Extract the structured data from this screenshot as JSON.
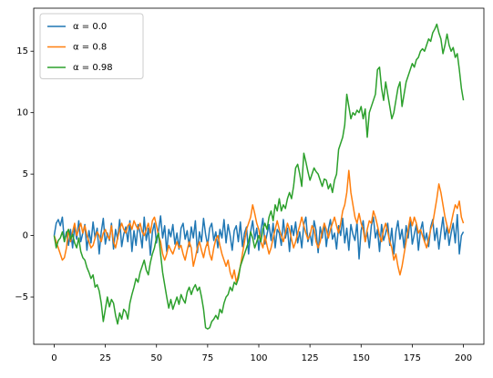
{
  "chart_data": {
    "type": "line",
    "x": [
      0,
      1,
      2,
      3,
      4,
      5,
      6,
      7,
      8,
      9,
      10,
      11,
      12,
      13,
      14,
      15,
      16,
      17,
      18,
      19,
      20,
      21,
      22,
      23,
      24,
      25,
      26,
      27,
      28,
      29,
      30,
      31,
      32,
      33,
      34,
      35,
      36,
      37,
      38,
      39,
      40,
      41,
      42,
      43,
      44,
      45,
      46,
      47,
      48,
      49,
      50,
      51,
      52,
      53,
      54,
      55,
      56,
      57,
      58,
      59,
      60,
      61,
      62,
      63,
      64,
      65,
      66,
      67,
      68,
      69,
      70,
      71,
      72,
      73,
      74,
      75,
      76,
      77,
      78,
      79,
      80,
      81,
      82,
      83,
      84,
      85,
      86,
      87,
      88,
      89,
      90,
      91,
      92,
      93,
      94,
      95,
      96,
      97,
      98,
      99,
      100,
      101,
      102,
      103,
      104,
      105,
      106,
      107,
      108,
      109,
      110,
      111,
      112,
      113,
      114,
      115,
      116,
      117,
      118,
      119,
      120,
      121,
      122,
      123,
      124,
      125,
      126,
      127,
      128,
      129,
      130,
      131,
      132,
      133,
      134,
      135,
      136,
      137,
      138,
      139,
      140,
      141,
      142,
      143,
      144,
      145,
      146,
      147,
      148,
      149,
      150,
      151,
      152,
      153,
      154,
      155,
      156,
      157,
      158,
      159,
      160,
      161,
      162,
      163,
      164,
      165,
      166,
      167,
      168,
      169,
      170,
      171,
      172,
      173,
      174,
      175,
      176,
      177,
      178,
      179,
      180,
      181,
      182,
      183,
      184,
      185,
      186,
      187,
      188,
      189,
      190,
      191,
      192,
      193,
      194,
      195,
      196,
      197,
      198,
      199,
      200
    ],
    "series": [
      {
        "name": "α = 0.0",
        "color": "#1f77b4",
        "values": [
          0.0,
          1.0,
          1.3,
          0.8,
          1.5,
          -0.5,
          0.3,
          -0.8,
          0.5,
          -1.0,
          0.8,
          -0.3,
          1.2,
          -0.5,
          0.2,
          0.9,
          -1.2,
          0.4,
          -0.6,
          1.1,
          -0.2,
          0.6,
          -1.5,
          0.3,
          1.4,
          -0.7,
          0.2,
          -0.4,
          1.0,
          -1.1,
          0.5,
          -0.3,
          1.3,
          -0.9,
          0.1,
          0.7,
          -0.5,
          1.2,
          -1.3,
          0.4,
          -0.8,
          0.9,
          0.2,
          -1.0,
          1.5,
          -0.4,
          0.6,
          -1.6,
          0.3,
          1.0,
          -0.6,
          0.4,
          1.6,
          -0.2,
          0.8,
          -1.3,
          0.5,
          -0.1,
          0.9,
          -0.7,
          0.2,
          -1.1,
          0.6,
          1.0,
          -0.3,
          0.4,
          -0.9,
          0.7,
          -0.2,
          1.2,
          -1.4,
          0.3,
          -0.5,
          1.4,
          0.1,
          -0.8,
          0.6,
          1.0,
          -0.4,
          0.3,
          -1.0,
          0.5,
          -0.2,
          1.3,
          -0.6,
          0.9,
          0.0,
          -1.2,
          0.4,
          0.8,
          -0.5,
          1.1,
          -0.9,
          0.2,
          0.7,
          -1.5,
          0.3,
          1.2,
          -0.3,
          0.6,
          -1.2,
          0.4,
          1.4,
          -0.7,
          0.1,
          0.9,
          -0.4,
          1.0,
          -1.0,
          0.5,
          0.2,
          -0.8,
          1.3,
          -0.2,
          0.6,
          -1.3,
          0.8,
          0.0,
          1.1,
          -0.6,
          0.3,
          -1.0,
          0.9,
          1.5,
          -0.5,
          0.2,
          -0.8,
          1.2,
          0.4,
          -1.4,
          0.7,
          -0.2,
          1.0,
          -0.9,
          0.5,
          1.3,
          -0.3,
          0.2,
          -1.1,
          0.8,
          0.0,
          1.4,
          -0.6,
          0.6,
          -1.2,
          0.9,
          0.1,
          -0.4,
          1.1,
          -1.9,
          0.4,
          1.2,
          -0.5,
          0.3,
          -1.0,
          0.8,
          1.5,
          -0.2,
          0.5,
          -1.3,
          0.9,
          -0.4,
          0.2,
          1.0,
          -0.8,
          0.6,
          -1.5,
          0.3,
          1.2,
          -0.3,
          0.5,
          -1.0,
          0.8,
          -0.2,
          1.4,
          -0.7,
          0.1,
          0.9,
          -1.2,
          0.4,
          1.1,
          -0.5,
          0.2,
          -0.9,
          0.7,
          1.3,
          -0.4,
          0.6,
          -1.1,
          0.3,
          1.5,
          -0.3,
          0.8,
          -0.8,
          0.2,
          1.0,
          -0.6,
          1.7,
          -1.5,
          0.0,
          0.3
        ]
      },
      {
        "name": "α = 0.8",
        "color": "#ff7f0e",
        "values": [
          0.0,
          -0.5,
          -1.0,
          -1.5,
          -2.0,
          -1.8,
          -1.0,
          0.5,
          -0.5,
          0.3,
          1.0,
          0.0,
          0.5,
          1.0,
          0.2,
          0.8,
          0.0,
          -0.5,
          -1.0,
          -0.8,
          -0.2,
          0.3,
          0.0,
          -0.5,
          0.2,
          0.5,
          0.0,
          -0.3,
          0.8,
          -0.5,
          -1.0,
          -0.2,
          0.5,
          1.0,
          0.5,
          0.2,
          0.8,
          1.0,
          0.5,
          1.2,
          0.8,
          0.5,
          1.0,
          0.3,
          0.0,
          0.5,
          1.0,
          0.2,
          1.2,
          1.5,
          0.8,
          0.0,
          -0.5,
          -1.5,
          -2.0,
          -1.5,
          -0.8,
          -1.2,
          -1.5,
          -1.0,
          -0.5,
          -1.0,
          -0.8,
          -1.5,
          -2.0,
          -1.2,
          -0.5,
          -1.0,
          -2.5,
          -1.8,
          -1.0,
          -0.5,
          -1.2,
          -1.8,
          -1.0,
          -0.5,
          -1.5,
          -2.0,
          -1.0,
          -0.3,
          0.0,
          -0.8,
          -1.5,
          -2.0,
          -2.5,
          -2.0,
          -3.0,
          -3.5,
          -2.8,
          -3.8,
          -3.2,
          -2.5,
          -1.5,
          -0.5,
          0.5,
          1.0,
          1.5,
          2.5,
          1.8,
          1.0,
          0.5,
          -0.5,
          -1.0,
          0.0,
          -0.8,
          -1.5,
          -1.0,
          -0.2,
          0.5,
          1.2,
          0.5,
          0.0,
          -0.5,
          0.2,
          1.0,
          0.5,
          -0.3,
          -1.0,
          -0.5,
          0.2,
          0.8,
          1.5,
          0.8,
          0.2,
          -0.3,
          0.0,
          0.8,
          0.5,
          -0.5,
          -1.0,
          -0.5,
          0.3,
          1.0,
          0.5,
          -0.2,
          0.5,
          1.0,
          1.5,
          0.8,
          0.2,
          1.0,
          2.0,
          2.5,
          3.5,
          5.3,
          3.5,
          2.5,
          1.5,
          1.0,
          1.8,
          1.0,
          0.5,
          -0.5,
          0.5,
          1.2,
          1.0,
          2.0,
          1.5,
          0.8,
          0.0,
          -0.5,
          0.5,
          1.0,
          0.3,
          -0.5,
          -1.0,
          -2.0,
          -1.5,
          -2.5,
          -3.2,
          -2.5,
          -1.5,
          -0.5,
          0.5,
          1.5,
          0.8,
          1.5,
          1.0,
          0.2,
          0.5,
          0.0,
          -0.5,
          -1.0,
          -0.3,
          0.5,
          1.0,
          2.0,
          3.0,
          4.2,
          3.5,
          2.5,
          1.5,
          0.8,
          0.2,
          1.0,
          1.8,
          2.5,
          2.2,
          2.8,
          1.5,
          1.0
        ]
      },
      {
        "name": "α = 0.98",
        "color": "#2ca02c",
        "values": [
          0.0,
          -1.0,
          -0.4,
          -0.2,
          0.3,
          -0.5,
          0.2,
          0.5,
          -0.3,
          0.1,
          -0.6,
          -1.0,
          -0.2,
          -1.3,
          -1.8,
          -2.0,
          -2.6,
          -3.0,
          -3.5,
          -3.2,
          -4.2,
          -4.0,
          -4.5,
          -5.5,
          -7.0,
          -6.0,
          -5.0,
          -5.8,
          -5.2,
          -5.5,
          -6.5,
          -7.2,
          -6.3,
          -6.8,
          -6.0,
          -6.2,
          -6.8,
          -5.5,
          -4.8,
          -4.2,
          -3.5,
          -3.8,
          -3.0,
          -2.5,
          -2.0,
          -2.8,
          -3.2,
          -2.2,
          -1.5,
          -1.0,
          -0.2,
          0.2,
          -1.5,
          -3.0,
          -4.0,
          -5.0,
          -5.9,
          -5.2,
          -6.0,
          -5.5,
          -5.0,
          -5.6,
          -4.8,
          -5.2,
          -5.5,
          -4.6,
          -4.2,
          -4.8,
          -4.3,
          -4.0,
          -4.5,
          -4.2,
          -5.0,
          -6.0,
          -7.5,
          -7.6,
          -7.5,
          -7.0,
          -6.8,
          -6.5,
          -6.8,
          -6.0,
          -6.3,
          -5.5,
          -5.0,
          -4.8,
          -4.2,
          -4.5,
          -3.8,
          -4.0,
          -3.5,
          -2.5,
          -2.0,
          -1.5,
          -1.0,
          -0.5,
          0.3,
          -0.2,
          -1.0,
          -0.5,
          0.0,
          -0.5,
          0.5,
          1.0,
          0.5,
          1.5,
          2.0,
          1.2,
          2.5,
          2.0,
          3.0,
          2.0,
          2.5,
          2.2,
          3.0,
          3.5,
          3.0,
          4.0,
          5.5,
          5.8,
          5.0,
          4.0,
          6.7,
          6.0,
          5.2,
          4.5,
          5.0,
          5.5,
          5.2,
          5.0,
          4.5,
          4.0,
          4.6,
          4.5,
          3.8,
          4.2,
          3.5,
          4.5,
          5.0,
          7.0,
          7.5,
          8.0,
          9.0,
          11.5,
          10.5,
          9.5,
          10.0,
          9.8,
          10.2,
          10.0,
          10.5,
          9.5,
          10.3,
          8.0,
          10.0,
          10.5,
          11.0,
          11.5,
          13.5,
          13.7,
          12.0,
          11.0,
          12.5,
          11.5,
          10.5,
          9.5,
          10.0,
          11.0,
          12.0,
          12.5,
          10.5,
          11.5,
          12.5,
          13.0,
          13.5,
          14.0,
          13.7,
          14.3,
          14.5,
          15.0,
          15.2,
          15.0,
          15.5,
          16.0,
          15.8,
          16.5,
          16.8,
          17.2,
          16.5,
          16.0,
          14.8,
          15.5,
          16.4,
          15.5,
          15.0,
          15.3,
          14.5,
          14.8,
          13.5,
          12.0,
          11.0
        ]
      }
    ],
    "xlim": [
      -10,
      210
    ],
    "ylim": [
      -8.85,
      18.5
    ],
    "xticks": [
      0,
      25,
      50,
      75,
      100,
      125,
      150,
      175,
      200
    ],
    "yticks": [
      {
        "value": -5,
        "label": "−5"
      },
      0,
      5,
      10,
      15
    ],
    "legend": "upper left",
    "grid": false
  }
}
